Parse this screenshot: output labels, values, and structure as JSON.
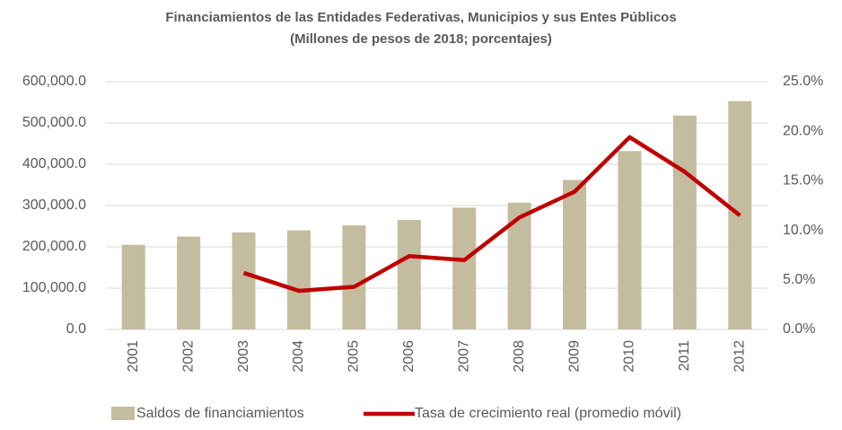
{
  "chart_data": {
    "type": "bar_line",
    "title": "Financiamientos de las Entidades Federativas, Municipios y sus Entes Públicos",
    "subtitle": "(Millones de pesos de 2018; porcentajes)",
    "categories": [
      "2001",
      "2002",
      "2003",
      "2004",
      "2005",
      "2006",
      "2007",
      "2008",
      "2009",
      "2010",
      "2011",
      "2012"
    ],
    "series": [
      {
        "name": "Saldos de financiamientos",
        "color": "#c4bc9f",
        "type": "bar",
        "values": [
          205000,
          225000,
          235000,
          240000,
          252000,
          265000,
          295000,
          307000,
          362000,
          432000,
          518000,
          553000
        ]
      },
      {
        "name": "Tasa de crecimiento real (promedio móvil)",
        "color": "#c00000",
        "type": "line",
        "axis": "y2",
        "values": [
          null,
          null,
          5.7,
          3.9,
          4.3,
          7.4,
          7.0,
          11.3,
          13.9,
          19.4,
          15.9,
          11.5
        ]
      }
    ],
    "ylim": [
      0,
      600000
    ],
    "yticks": [
      {
        "value": 0,
        "label": "0.0"
      },
      {
        "value": 100000,
        "label": "100,000.0"
      },
      {
        "value": 200000,
        "label": "200,000.0"
      },
      {
        "value": 300000,
        "label": "300,000.0"
      },
      {
        "value": 400000,
        "label": "400,000.0"
      },
      {
        "value": 500000,
        "label": "500,000.0"
      },
      {
        "value": 600000,
        "label": "600,000.0"
      }
    ],
    "y2lim": [
      0,
      25
    ],
    "y2ticks": [
      {
        "value": 0,
        "label": "0.0%"
      },
      {
        "value": 5,
        "label": "5.0%"
      },
      {
        "value": 10,
        "label": "10.0%"
      },
      {
        "value": 15,
        "label": "15.0%"
      },
      {
        "value": 20,
        "label": "20.0%"
      },
      {
        "value": 25,
        "label": "25.0%"
      }
    ],
    "grid": true,
    "legend": "bottom"
  }
}
